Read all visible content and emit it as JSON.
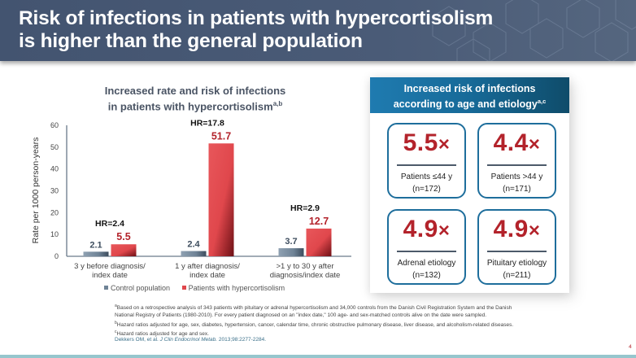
{
  "header": {
    "title_line1": "Risk of infections in patients with hypercortisolism",
    "title_line2": "is higher than the general population"
  },
  "left_chart": {
    "title_line1": "Increased rate and risk of infections",
    "title_line2": "in patients with hypercortisolism",
    "title_sup": "a,b"
  },
  "chart_data": {
    "type": "bar",
    "title": "Increased rate and risk of infections in patients with hypercortisolism",
    "xlabel": "",
    "ylabel": "Rate per 1000 person-years",
    "ylim": [
      0,
      60
    ],
    "yticks": [
      0,
      10,
      20,
      30,
      40,
      50,
      60
    ],
    "grid": false,
    "legend_position": "bottom",
    "categories": [
      [
        "3 y before diagnosis/",
        "index date"
      ],
      [
        "1 y after diagnosis/",
        "index date"
      ],
      [
        ">1 y to 30 y after",
        "diagnosis/index date"
      ]
    ],
    "series": [
      {
        "name": "Control population",
        "values": [
          2.1,
          2.4,
          3.7
        ],
        "labels": [
          "2.1",
          "2.4",
          "3.7"
        ],
        "color": "#6f8396"
      },
      {
        "name": "Patients with hypercortisolism",
        "values": [
          5.5,
          51.7,
          12.7
        ],
        "labels": [
          "5.5",
          "51.7",
          "12.7"
        ],
        "color": "#e0474c"
      }
    ],
    "annotations": [
      "HR=2.4",
      "HR=17.8",
      "HR=2.9"
    ],
    "value_label_colors": {
      "control": "#3d4d5e",
      "patients": "#b3232b"
    }
  },
  "right_panel": {
    "title_line1": "Increased risk of infections",
    "title_line2": "according to age and etiology",
    "title_sup": "a,c",
    "cards": [
      {
        "value": "5.5",
        "suffix": "×",
        "label": "Patients ≤44 y",
        "n": "(n=172)"
      },
      {
        "value": "4.4",
        "suffix": "×",
        "label": "Patients >44 y",
        "n": "(n=171)"
      },
      {
        "value": "4.9",
        "suffix": "×",
        "label": "Adrenal etiology",
        "n": "(n=132)"
      },
      {
        "value": "4.9",
        "suffix": "×",
        "label": "Pituitary etiology",
        "n": "(n=211)"
      }
    ]
  },
  "footnotes": {
    "a_mark": "a",
    "a_text1": "Based on a retrospective analysis of 343 patients with pituitary or adrenal hypercortisolism and 34,000 controls from the Danish Civil Registration System and the Danish",
    "a_text2": "National Registry of Patients (1980-2010). For every patient diagnosed on an \"index date,\" 100 age- and sex-matched controls alive on the date were sampled.",
    "b_mark": "b",
    "b_text": "Hazard ratios adjusted for age, sex, diabetes, hypertension, cancer, calendar time, chronic obstructive pulmonary disease, liver disease, and alcoholism-related diseases.",
    "c_mark": "c",
    "c_text": "Hazard ratios adjusted for age and sex."
  },
  "citation": {
    "authors": "Dekkers OM, et al. ",
    "journal": "J Clin Endocrinol Metab.",
    "details": " 2013;98:2277-2284."
  },
  "page_number": "4",
  "colors": {
    "header_bg": "#475875",
    "accent_red": "#b3232b",
    "panel_blue": "#1e6e9c",
    "bottom_bar": "#96c6cd"
  }
}
